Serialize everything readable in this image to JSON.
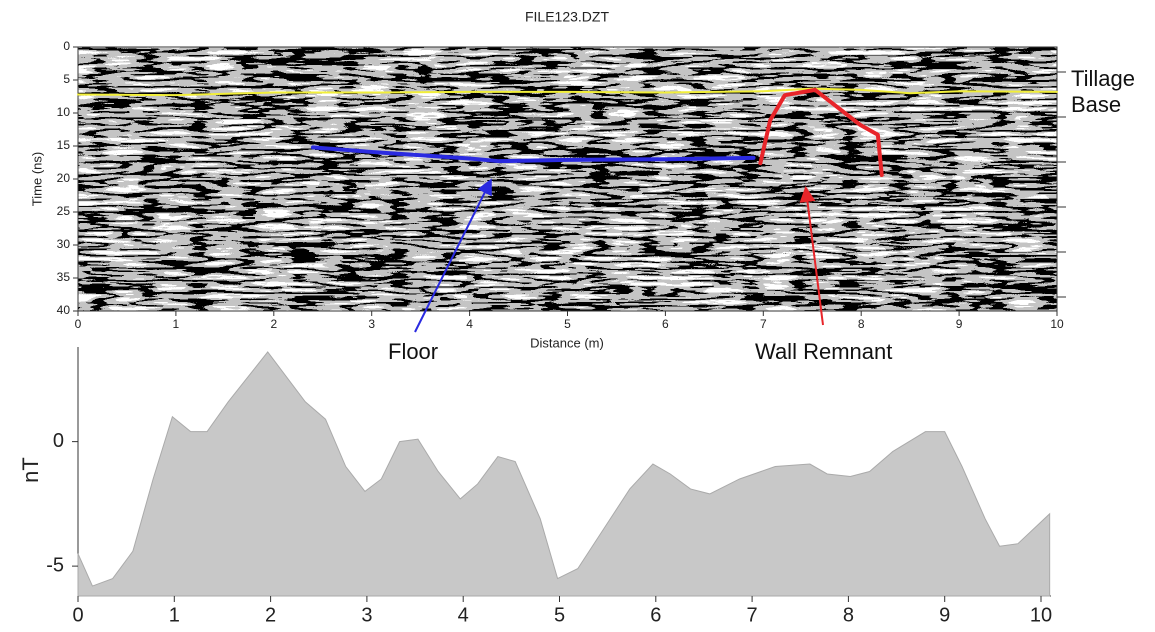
{
  "chart_data": [
    {
      "type": "radargram",
      "title": "FILE123.DZT",
      "xlabel": "Distance (m)",
      "ylabel": "Time (ns)",
      "xlim": [
        0,
        10
      ],
      "ylim": [
        0,
        40
      ],
      "y_inverted": true,
      "xticks": [
        0,
        1,
        2,
        3,
        4,
        5,
        6,
        7,
        8,
        9,
        10
      ],
      "yticks": [
        0,
        5,
        10,
        15,
        20,
        25,
        30,
        35,
        40
      ],
      "annotations": [
        "Floor",
        "Wall Remnant",
        "Tillage Base"
      ],
      "series": [
        {
          "color": "#f2ef3a",
          "x": [
            0,
            1,
            2,
            3,
            4,
            5,
            6,
            7,
            7.5,
            8,
            8.5,
            9,
            10
          ],
          "values": [
            7.2,
            7.3,
            6.9,
            6.9,
            6.8,
            6.8,
            6.9,
            6.7,
            6.3,
            6.5,
            7.0,
            6.7,
            6.8
          ]
        },
        {
          "color": "#2a2ae0",
          "x": [
            2.4,
            3,
            4,
            4.3,
            5,
            6,
            6.9
          ],
          "values": [
            15.2,
            15.9,
            16.9,
            17.3,
            17.1,
            17.0,
            16.8
          ]
        },
        {
          "color": "#e8252a",
          "x": [
            6.97,
            7.07,
            7.22,
            7.53,
            7.99,
            8.17,
            8.21
          ],
          "values": [
            17.6,
            11.1,
            7.3,
            6.5,
            11.8,
            13.3,
            19.4
          ]
        }
      ]
    },
    {
      "type": "area",
      "ylabel": "nT",
      "color": "#c8c8c8",
      "xlim": [
        0,
        10.1
      ],
      "ylim": [
        -6.2,
        3.8
      ],
      "xticks": [
        0,
        1,
        2,
        3,
        4,
        5,
        6,
        7,
        8,
        9,
        10
      ],
      "yticks": [
        -5,
        0
      ],
      "x": [
        0,
        0.15,
        0.36,
        0.57,
        0.78,
        0.98,
        1.17,
        1.34,
        1.56,
        1.97,
        2.36,
        2.57,
        2.78,
        2.98,
        3.15,
        3.34,
        3.53,
        3.74,
        3.97,
        4.15,
        4.36,
        4.54,
        4.8,
        4.98,
        5.19,
        5.46,
        5.73,
        5.97,
        6.15,
        6.36,
        6.56,
        6.87,
        7.24,
        7.6,
        7.78,
        8.02,
        8.22,
        8.46,
        8.8,
        9.0,
        9.18,
        9.42,
        9.57,
        9.76,
        10.09
      ],
      "values": [
        -4.5,
        -5.8,
        -5.5,
        -4.4,
        -1.5,
        1.0,
        0.4,
        0.4,
        1.6,
        3.6,
        1.6,
        0.9,
        -1.0,
        -2.0,
        -1.5,
        0,
        0.1,
        -1.2,
        -2.3,
        -1.7,
        -0.6,
        -0.8,
        -3.1,
        -5.5,
        -5.1,
        -3.5,
        -1.9,
        -0.9,
        -1.3,
        -1.9,
        -2.1,
        -1.5,
        -1.0,
        -0.9,
        -1.3,
        -1.4,
        -1.2,
        -0.4,
        0.4,
        0.4,
        -1.0,
        -3.1,
        -4.2,
        -4.1,
        -2.9
      ]
    }
  ]
}
